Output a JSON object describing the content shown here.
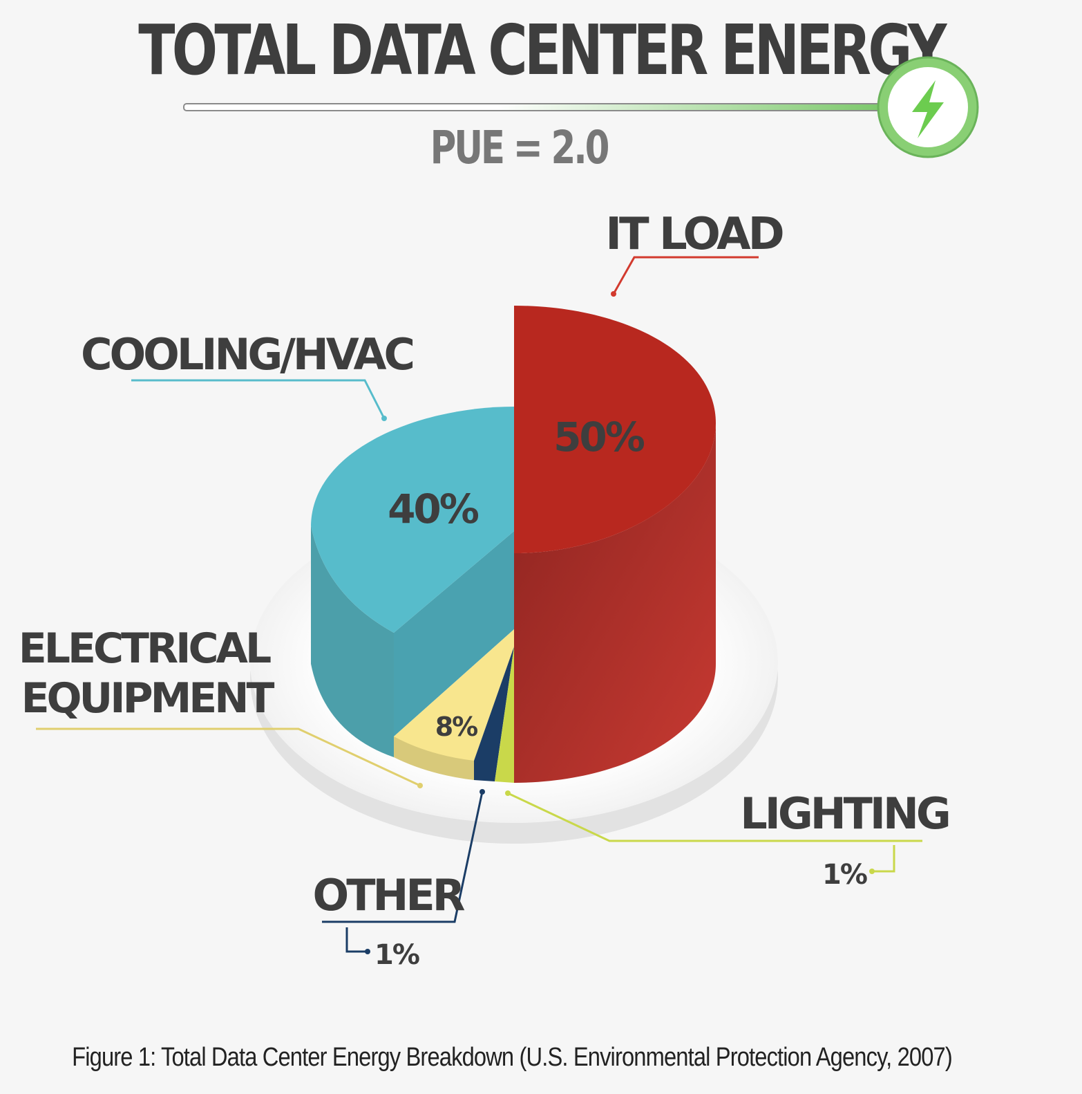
{
  "title": "TOTAL DATA CENTER ENERGY",
  "subtitle": "PUE = 2.0",
  "caption": "Figure 1: Total Data Center Energy Breakdown (U.S. Environmental Protection Agency, 2007)",
  "icon": "lightning-bolt-icon",
  "colors": {
    "it_load": "#b8281f",
    "cooling": "#57bccb",
    "electrical": "#f8e68e",
    "other": "#1b3d66",
    "lighting": "#c9d84a",
    "title": "#3e3e3e",
    "accent_green": "#7cc86b"
  },
  "chart_data": {
    "type": "pie",
    "title": "TOTAL DATA CENTER ENERGY",
    "subtitle": "PUE = 2.0",
    "slices": [
      {
        "label": "IT LOAD",
        "value": 50,
        "value_label": "50%"
      },
      {
        "label": "COOLING/HVAC",
        "value": 40,
        "value_label": "40%"
      },
      {
        "label": "ELECTRICAL EQUIPMENT",
        "label_lines": [
          "ELECTRICAL",
          "EQUIPMENT"
        ],
        "value": 8,
        "value_label": "8%"
      },
      {
        "label": "OTHER",
        "value": 1,
        "value_label": "1%"
      },
      {
        "label": "LIGHTING",
        "value": 1,
        "value_label": "1%"
      }
    ]
  }
}
